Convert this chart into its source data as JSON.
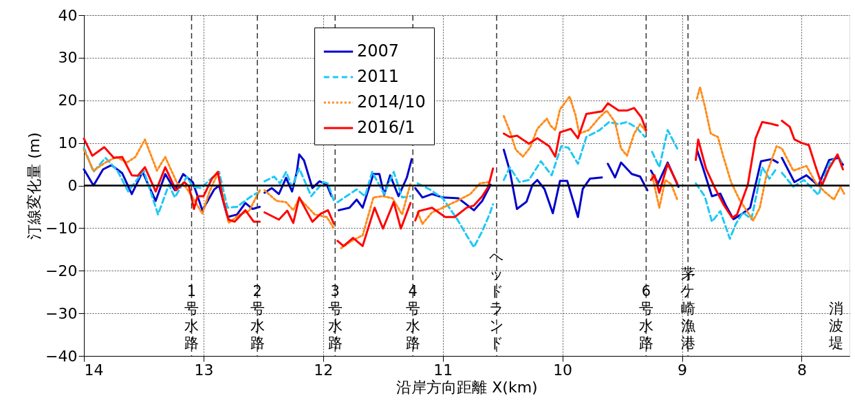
{
  "chart_data": {
    "type": "line",
    "xlabel": "沿岸方向距離 X(km)",
    "ylabel": "汀線変化量 (m)",
    "xlim": [
      14,
      7.6
    ],
    "xticks": [
      14,
      13,
      12,
      11,
      10,
      9,
      8
    ],
    "ylim": [
      -40,
      40
    ],
    "yticks": [
      -40,
      -30,
      -20,
      -10,
      0,
      10,
      20,
      30,
      40
    ],
    "grid": true,
    "legend": "top",
    "marker": "none",
    "series": [
      {
        "name": "2007",
        "color": "#0000cc",
        "line_style": "solid",
        "x": [
          14,
          13.92,
          13.84,
          13.77,
          13.68,
          13.6,
          13.51,
          13.4,
          13.32,
          13.24,
          13.17,
          13.09,
          13.01,
          12.91,
          12.87,
          12.8,
          12.72,
          12.65,
          12.59,
          12.53,
          null,
          12.49,
          12.43,
          12.37,
          12.31,
          12.26,
          12.22,
          12.2,
          12.16,
          12.09,
          12.03,
          11.97,
          11.93,
          null,
          11.87,
          11.78,
          11.72,
          11.67,
          11.58,
          11.53,
          11.49,
          11.44,
          11.37,
          11.3,
          11.26,
          null,
          11.23,
          11.17,
          11.09,
          11,
          10.87,
          10.74,
          10.67,
          10.6,
          null,
          10.49,
          10.44,
          10.38,
          10.3,
          10.25,
          10.21,
          10.15,
          10.08,
          10.02,
          9.96,
          9.87,
          9.83,
          9.77,
          9.67,
          null,
          9.62,
          9.56,
          9.51,
          9.42,
          9.35,
          9.29,
          null,
          9.26,
          9.2,
          9.12,
          9.03,
          null,
          8.875,
          8.83,
          8.75,
          8.68,
          8.635,
          8.57,
          8.49,
          8.43,
          8.34,
          8.25,
          8.2,
          null,
          8.165,
          8.06,
          7.96,
          7.86,
          7.77,
          7.69,
          7.655
        ],
        "values": [
          3.8,
          0,
          3.8,
          4.8,
          2.9,
          -2,
          3.2,
          -3.6,
          2.7,
          -1.1,
          2.7,
          0.8,
          -5.8,
          -0.9,
          0,
          -7.4,
          -6.8,
          -4.1,
          -5.5,
          -5,
          null,
          -1.7,
          -0.6,
          -2,
          1.8,
          -1.4,
          3.2,
          7.3,
          5.9,
          -0.6,
          1,
          0.2,
          -2.5,
          null,
          -5.8,
          -5.2,
          -3.3,
          -5.2,
          2.7,
          2.7,
          -2.2,
          2.4,
          -2.5,
          1.9,
          6.2,
          null,
          -0.6,
          -2.8,
          -2,
          -2.8,
          -3,
          -5.8,
          -3.6,
          0.2,
          null,
          8.4,
          3.5,
          -5.5,
          -3.8,
          0.2,
          1.3,
          -0.8,
          -6.5,
          1.1,
          1.1,
          -7.4,
          -0.8,
          1.6,
          1.9,
          null,
          5.1,
          1.9,
          5.4,
          2.7,
          2.1,
          -1.1,
          null,
          3.5,
          0.5,
          5.4,
          -0.3,
          null,
          8.4,
          4.6,
          -2.5,
          -1.9,
          -4.6,
          -7.9,
          -6.5,
          -5.2,
          5.7,
          6.2,
          5.4,
          null,
          6.5,
          0.8,
          2.4,
          0,
          6,
          6.5,
          4.9
        ]
      },
      {
        "name": "2011",
        "color": "#1ec8f5",
        "line_style": "dashed",
        "x": [
          14,
          13.92,
          13.82,
          13.72,
          13.63,
          13.5,
          13.38,
          13.29,
          13.24,
          13.14,
          13.09,
          13.02,
          12.95,
          12.87,
          12.8,
          12.72,
          12.6,
          12.53,
          null,
          12.49,
          12.41,
          12.36,
          12.31,
          12.26,
          12.2,
          12.1,
          12,
          11.96,
          11.91,
          null,
          11.88,
          11.72,
          11.65,
          11.59,
          11.49,
          11.41,
          11.34,
          11.27,
          null,
          11.21,
          11.11,
          11,
          10.88,
          10.8,
          10.74,
          10.67,
          10.61,
          10.58,
          null,
          10.49,
          10.44,
          10.36,
          10.28,
          10.18,
          10.09,
          10.01,
          9.95,
          9.87,
          9.8,
          9.69,
          9.61,
          9.53,
          9.46,
          9.38,
          9.31,
          null,
          9.25,
          9.19,
          9.12,
          9.04,
          null,
          8.885,
          8.81,
          8.75,
          8.68,
          8.6,
          8.55,
          8.49,
          8.42,
          8.33,
          8.27,
          8.21,
          null,
          8.165,
          8.07,
          7.98,
          7.86,
          7.77,
          7.7,
          7.655
        ],
        "values": [
          8.9,
          3.2,
          6.5,
          3.5,
          -1.4,
          3.5,
          -6.8,
          0.2,
          -2.8,
          2.1,
          -0.3,
          -0.6,
          1.3,
          3.2,
          -5.2,
          -5,
          -2.5,
          -1.4,
          null,
          1,
          2.1,
          0.5,
          3.2,
          -0.3,
          4,
          -2.5,
          0.8,
          0.5,
          -3.6,
          null,
          -3.9,
          -0.9,
          -2.5,
          3.2,
          -2,
          3.2,
          -2.8,
          -2.5,
          null,
          0.5,
          -0.9,
          -3,
          -7.9,
          -11.7,
          -14.5,
          -10.7,
          -6.8,
          -4.4,
          null,
          1.3,
          4.3,
          0.8,
          1.3,
          5.7,
          2.4,
          9.2,
          8.9,
          5.1,
          11.4,
          13,
          14.9,
          14.4,
          14.9,
          13.6,
          11.4,
          null,
          7.9,
          4.3,
          13,
          8.7,
          null,
          0.5,
          -2.5,
          -8.5,
          -6,
          -12.5,
          -9,
          -6.3,
          -7.9,
          4.3,
          1.6,
          4,
          null,
          3,
          -0.3,
          1.3,
          -2.2,
          5.1,
          7,
          4.9
        ]
      },
      {
        "name": "2014/10",
        "color": "#ff8c1a",
        "line_style": "dotted",
        "x": [
          14,
          13.92,
          13.82,
          13.73,
          13.64,
          13.57,
          13.49,
          13.39,
          13.32,
          13.22,
          13.15,
          13.08,
          13.01,
          12.95,
          12.88,
          12.79,
          12.7,
          12.62,
          12.53,
          null,
          12.49,
          12.39,
          12.31,
          12.25,
          12.2,
          12.07,
          11.97,
          11.91,
          null,
          11.85,
          11.75,
          11.67,
          11.58,
          11.5,
          11.42,
          11.34,
          11.27,
          null,
          11.21,
          11.17,
          11.09,
          11,
          10.88,
          10.77,
          10.69,
          10.62,
          null,
          10.49,
          10.44,
          10.39,
          10.33,
          10.27,
          10.21,
          10.13,
          10.1,
          10.06,
          10.02,
          9.94,
          9.89,
          9.86,
          9.78,
          9.69,
          9.63,
          9.56,
          9.51,
          9.46,
          9.4,
          9.35,
          9.3,
          null,
          9.25,
          9.19,
          9.14,
          9.09,
          9.04,
          null,
          8.875,
          8.85,
          8.81,
          8.76,
          8.7,
          8.655,
          8.59,
          8.52,
          8.45,
          8.405,
          8.35,
          8.29,
          8.21,
          8.165,
          8.07,
          7.96,
          7.885,
          7.81,
          7.73,
          7.675,
          7.645
        ],
        "values": [
          8.4,
          3.5,
          5.4,
          6.7,
          5.4,
          6.7,
          10.8,
          3.5,
          6.7,
          0.5,
          -0.3,
          -3.3,
          -6.6,
          -1.4,
          2.9,
          -8.8,
          -6.8,
          -6,
          -1.1,
          null,
          -1.1,
          -3.6,
          -3.9,
          -5.8,
          -3,
          -6.8,
          -7.4,
          -10.1,
          null,
          -14.7,
          -12.8,
          -11.7,
          -2.8,
          -2.5,
          -3,
          -6.8,
          0.5,
          null,
          -6.3,
          -9,
          -6.3,
          -5.2,
          -3.6,
          -2,
          0.5,
          0.8,
          null,
          16.3,
          12.8,
          8.4,
          6.8,
          8.9,
          13.3,
          15.7,
          14.1,
          13,
          17.9,
          20.9,
          16.5,
          12.2,
          13,
          16,
          17.6,
          14.9,
          8.7,
          7,
          12.2,
          14.4,
          12.7,
          null,
          2.4,
          -5.2,
          1.3,
          0.3,
          -3.3,
          null,
          20.4,
          23.1,
          18.7,
          12.2,
          11.4,
          6.8,
          0.8,
          -3.3,
          -6.3,
          -8.2,
          -5.2,
          3,
          9.2,
          8.7,
          3.5,
          4.6,
          0.8,
          -1.4,
          -3.3,
          -0.3,
          -1.9
        ]
      },
      {
        "name": "2016/1",
        "color": "#ff0000",
        "line_style": "solid",
        "x": [
          14,
          13.93,
          13.83,
          13.75,
          13.68,
          13.6,
          13.55,
          13.49,
          13.4,
          13.32,
          13.23,
          13.16,
          13.12,
          13.08,
          13.05,
          13,
          12.93,
          12.88,
          12.84,
          12.79,
          12.74,
          12.65,
          12.58,
          12.53,
          null,
          12.49,
          12.37,
          12.3,
          12.25,
          12.2,
          12.09,
          12.02,
          11.96,
          11.91,
          null,
          11.88,
          11.83,
          11.75,
          11.67,
          11.57,
          11.5,
          11.41,
          11.35,
          11.27,
          null,
          11.23,
          11.2,
          11.09,
          10.98,
          10.9,
          10.8,
          10.74,
          10.67,
          10.62,
          10.58,
          null,
          10.49,
          10.44,
          10.38,
          10.28,
          10.21,
          10.11,
          10.06,
          10.02,
          9.93,
          9.87,
          9.8,
          9.67,
          9.62,
          9.53,
          9.46,
          9.4,
          9.34,
          9.3,
          null,
          9.26,
          9.23,
          9.19,
          9.12,
          9.04,
          null,
          8.885,
          8.865,
          8.8,
          8.73,
          8.65,
          8.58,
          8.54,
          8.45,
          8.385,
          8.33,
          8.27,
          8.2,
          null,
          8.165,
          8.1,
          8.06,
          8,
          7.94,
          7.885,
          7.83,
          7.77,
          7.7,
          7.655
        ],
        "values": [
          11,
          7,
          9,
          6.5,
          6.7,
          2.4,
          2.3,
          4.3,
          -1.4,
          4.3,
          -1.1,
          0.8,
          -0.3,
          -5.5,
          -2.5,
          -2.5,
          1.6,
          3.2,
          -3,
          -8,
          -8.5,
          -5.8,
          -8.5,
          -8.5,
          null,
          -6.3,
          -8,
          -5.9,
          -8.8,
          -2.8,
          -8.5,
          -6.6,
          -5.8,
          -9,
          null,
          -13,
          -14.2,
          -12.3,
          -14.2,
          -5.2,
          -10.1,
          -3.9,
          -10.1,
          -4.1,
          null,
          -8.2,
          -6,
          -5.2,
          -7.4,
          -7.4,
          -5.2,
          -4.7,
          -2.5,
          -0.3,
          4,
          null,
          12.2,
          11.4,
          11.7,
          9.8,
          11.1,
          9.2,
          6.8,
          12.5,
          13.3,
          11.1,
          16.8,
          17.4,
          19.3,
          17.6,
          17.6,
          18.2,
          16,
          13,
          null,
          1.3,
          2.4,
          -1.7,
          5.1,
          0.5,
          null,
          6,
          10.8,
          4,
          -0.3,
          -4.6,
          -7.6,
          -6.8,
          0.2,
          11.1,
          14.9,
          14.6,
          14.1,
          null,
          15.2,
          13.8,
          10.8,
          10,
          9.5,
          4.6,
          0,
          4,
          7.3,
          3.8
        ]
      }
    ],
    "ref_lines": [
      {
        "axis": "y",
        "value": 0,
        "label": null,
        "color": "#000000",
        "line_style": "solid"
      },
      {
        "axis": "x",
        "value": 13.1,
        "label": "1号水路",
        "color": "#333333",
        "line_style": "dashed"
      },
      {
        "axis": "x",
        "value": 12.55,
        "label": "2号水路",
        "color": "#333333",
        "line_style": "dashed"
      },
      {
        "axis": "x",
        "value": 11.9,
        "label": "3号水路",
        "color": "#333333",
        "line_style": "dashed"
      },
      {
        "axis": "x",
        "value": 11.25,
        "label": "4号水路",
        "color": "#333333",
        "line_style": "dashed"
      },
      {
        "axis": "x",
        "value": 10.55,
        "label": "ヘッドランド",
        "color": "#333333",
        "line_style": "dashed"
      },
      {
        "axis": "x",
        "value": 9.3,
        "label": "6号水路",
        "color": "#333333",
        "line_style": "dashed"
      },
      {
        "axis": "x",
        "value": 8.95,
        "label": "茅ケ崎漁港",
        "color": "#333333",
        "line_style": "dashed"
      }
    ],
    "annotations": [
      "消波堤"
    ]
  }
}
